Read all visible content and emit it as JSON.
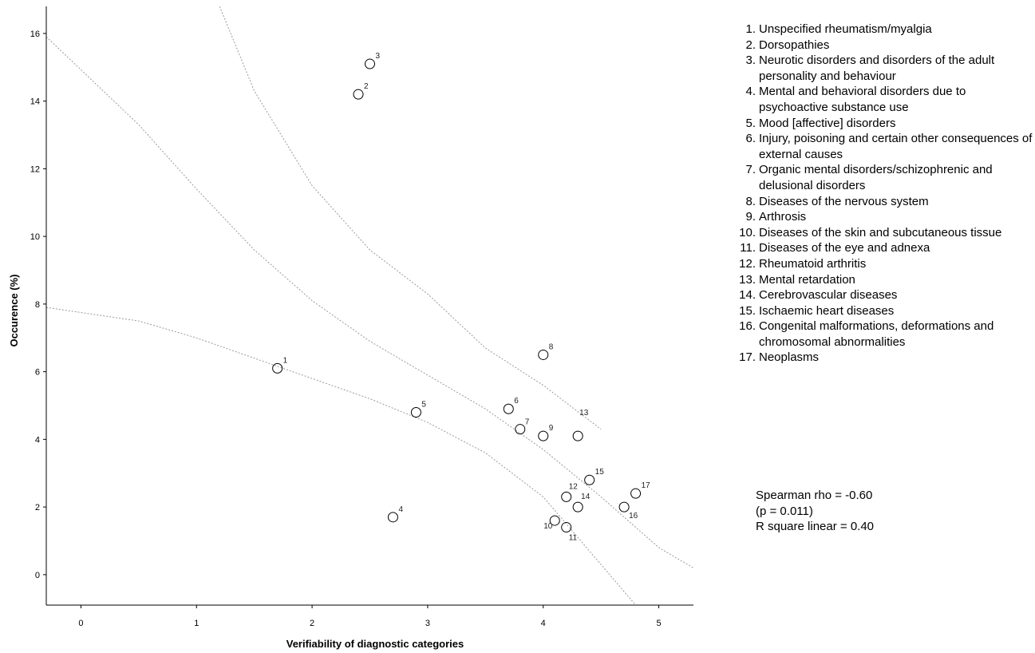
{
  "chart_data": {
    "type": "scatter",
    "xlabel": "Verifiability of diagnostic categories",
    "ylabel": "Occurence (%)",
    "xlim": [
      -0.3,
      5.3
    ],
    "ylim": [
      -0.9,
      16.8
    ],
    "x_ticks": [
      0,
      1,
      2,
      3,
      4,
      5
    ],
    "y_ticks": [
      0,
      2,
      4,
      6,
      8,
      10,
      12,
      14,
      16
    ],
    "grid": false,
    "points": [
      {
        "label": "1",
        "x": 1.7,
        "y": 6.1
      },
      {
        "label": "2",
        "x": 2.4,
        "y": 14.2
      },
      {
        "label": "3",
        "x": 2.5,
        "y": 15.1
      },
      {
        "label": "4",
        "x": 2.7,
        "y": 1.7
      },
      {
        "label": "5",
        "x": 2.9,
        "y": 4.8
      },
      {
        "label": "6",
        "x": 3.7,
        "y": 4.9
      },
      {
        "label": "7",
        "x": 3.8,
        "y": 4.3
      },
      {
        "label": "8",
        "x": 4.0,
        "y": 6.5
      },
      {
        "label": "9",
        "x": 4.0,
        "y": 4.1
      },
      {
        "label": "10",
        "x": 4.1,
        "y": 1.6
      },
      {
        "label": "11",
        "x": 4.2,
        "y": 1.4
      },
      {
        "label": "12",
        "x": 4.2,
        "y": 2.3
      },
      {
        "label": "13",
        "x": 4.3,
        "y": 4.1
      },
      {
        "label": "14",
        "x": 4.3,
        "y": 2.0
      },
      {
        "label": "15",
        "x": 4.4,
        "y": 2.8
      },
      {
        "label": "16",
        "x": 4.7,
        "y": 2.0
      },
      {
        "label": "17",
        "x": 4.8,
        "y": 2.4
      }
    ],
    "fit_lines": [
      {
        "kind": "fit",
        "points": [
          [
            -0.3,
            7.9
          ],
          [
            0.5,
            7.5
          ],
          [
            1.0,
            7.0
          ],
          [
            1.5,
            6.4
          ],
          [
            2.0,
            5.8
          ],
          [
            2.5,
            5.2
          ],
          [
            3.0,
            4.5
          ],
          [
            3.5,
            3.6
          ],
          [
            4.0,
            2.3
          ],
          [
            4.3,
            1.1
          ],
          [
            4.6,
            -0.1
          ],
          [
            4.8,
            -0.9
          ]
        ]
      },
      {
        "kind": "ci-lower",
        "points": [
          [
            -0.3,
            15.9
          ],
          [
            0.5,
            13.3
          ],
          [
            1.0,
            11.4
          ],
          [
            1.5,
            9.6
          ],
          [
            2.0,
            8.1
          ],
          [
            2.5,
            6.9
          ],
          [
            3.0,
            5.9
          ],
          [
            3.5,
            4.9
          ],
          [
            4.0,
            3.7
          ],
          [
            4.5,
            2.3
          ],
          [
            5.0,
            0.8
          ],
          [
            5.3,
            0.2
          ]
        ]
      },
      {
        "kind": "ci-upper",
        "points": [
          [
            1.2,
            16.8
          ],
          [
            1.5,
            14.3
          ],
          [
            2.0,
            11.5
          ],
          [
            2.5,
            9.6
          ],
          [
            3.0,
            8.3
          ],
          [
            3.5,
            6.7
          ],
          [
            4.0,
            5.6
          ],
          [
            4.5,
            4.3
          ]
        ]
      }
    ]
  },
  "legend": [
    {
      "num": "1.",
      "text": "Unspecified rheumatism/myalgia"
    },
    {
      "num": "2.",
      "text": "Dorsopathies"
    },
    {
      "num": "3.",
      "text": "Neurotic disorders and disorders of the adult personality and behaviour"
    },
    {
      "num": "4.",
      "text": "Mental and behavioral disorders due to psychoactive substance use"
    },
    {
      "num": "5.",
      "text": "Mood [affective] disorders"
    },
    {
      "num": "6.",
      "text": "Injury, poisoning and certain other consequences of external causes"
    },
    {
      "num": "7.",
      "text": "Organic mental disorders/schizophrenic and delusional disorders"
    },
    {
      "num": "8.",
      "text": "Diseases of the nervous system"
    },
    {
      "num": "9.",
      "text": "Arthrosis"
    },
    {
      "num": "10.",
      "text": "Diseases of the skin and subcutaneous tissue"
    },
    {
      "num": "11.",
      "text": "Diseases of the eye and adnexa"
    },
    {
      "num": "12.",
      "text": "Rheumatoid arthritis"
    },
    {
      "num": "13.",
      "text": "Mental retardation"
    },
    {
      "num": "14.",
      "text": "Cerebrovascular diseases"
    },
    {
      "num": "15.",
      "text": "Ischaemic heart diseases"
    },
    {
      "num": "16.",
      "text": "Congenital malformations, deformations and chromosomal abnormalities"
    },
    {
      "num": "17.",
      "text": "Neoplasms"
    }
  ],
  "stats": {
    "rho": "Spearman rho = -0.60",
    "p": "(p = 0.011)",
    "r2": "R square linear = 0.40"
  }
}
